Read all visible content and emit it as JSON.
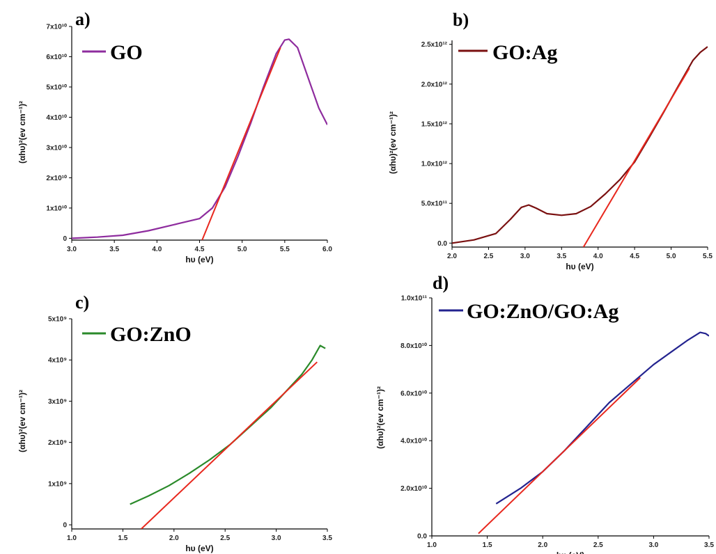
{
  "chart_data": [
    {
      "type": "line",
      "panel": "a)",
      "legend": "GO",
      "xlabel": "hυ (eV)",
      "ylabel": "(αhυ)²(ev cm⁻¹)²",
      "xlim": [
        3.0,
        6.0
      ],
      "ylim": [
        -600000000,
        70000000000
      ],
      "xticks": [
        3.0,
        3.5,
        4.0,
        4.5,
        5.0,
        5.5,
        6.0
      ],
      "xtick_labels": [
        "3.0",
        "3.5",
        "4.0",
        "4.5",
        "5.0",
        "5.5",
        "6.0"
      ],
      "yticks": [
        0,
        10000000000,
        20000000000,
        30000000000,
        40000000000,
        50000000000,
        60000000000,
        70000000000
      ],
      "ytick_labels": [
        "0",
        "1x10¹⁰",
        "2x10¹⁰",
        "3x10¹⁰",
        "4x10¹⁰",
        "5x10¹⁰",
        "6x10¹⁰",
        "7x10¹⁰"
      ],
      "grid": false,
      "legend_position": "top-left",
      "series": [
        {
          "color": "#8e2c9e",
          "x": [
            3.0,
            3.3,
            3.6,
            3.9,
            4.2,
            4.5,
            4.65,
            4.8,
            4.95,
            5.1,
            5.25,
            5.4,
            5.5,
            5.55,
            5.65,
            5.8,
            5.9,
            6.0
          ],
          "y": [
            0,
            400000000,
            1000000000,
            2500000000,
            4500000000,
            6500000000,
            10000000000,
            17000000000,
            27000000000,
            38000000000,
            50000000000,
            61000000000,
            65500000000,
            65800000000,
            63000000000,
            51000000000,
            43000000000,
            37500000000
          ]
        },
        {
          "color": "#e8281e",
          "x": [
            4.53,
            5.45
          ],
          "y": [
            -600000000,
            63000000000
          ]
        }
      ]
    },
    {
      "type": "line",
      "panel": "b)",
      "legend": "GO:Ag",
      "xlabel": "hυ (eV)",
      "ylabel": "(αhυ)²(ev cm⁻¹)²",
      "xlim": [
        2.0,
        5.5
      ],
      "ylim": [
        -50000000000,
        2550000000000
      ],
      "xticks": [
        2.0,
        2.5,
        3.0,
        3.5,
        4.0,
        4.5,
        5.0,
        5.5
      ],
      "xtick_labels": [
        "2.0",
        "2.5",
        "3.0",
        "3.5",
        "4.0",
        "4.5",
        "5.0",
        "5.5"
      ],
      "yticks": [
        0,
        500000000000,
        1000000000000,
        1500000000000,
        2000000000000,
        2500000000000
      ],
      "ytick_labels": [
        "0.0",
        "5.0x10¹¹",
        "1.0x10¹²",
        "1.5x10¹²",
        "2.0x10¹²",
        "2.5x10¹²"
      ],
      "grid": false,
      "legend_position": "top-left",
      "series": [
        {
          "color": "#7a1010",
          "x": [
            2.0,
            2.3,
            2.6,
            2.8,
            2.95,
            3.05,
            3.15,
            3.3,
            3.5,
            3.7,
            3.9,
            4.1,
            4.3,
            4.5,
            4.7,
            4.9,
            5.1,
            5.3,
            5.4,
            5.5
          ],
          "y": [
            0,
            40000000000,
            120000000000,
            300000000000,
            450000000000,
            480000000000,
            440000000000,
            370000000000,
            350000000000,
            370000000000,
            460000000000,
            620000000000,
            800000000000,
            1020000000000,
            1330000000000,
            1650000000000,
            1980000000000,
            2300000000000,
            2400000000000,
            2470000000000
          ]
        },
        {
          "color": "#e8281e",
          "x": [
            3.8,
            5.25
          ],
          "y": [
            -50000000000,
            2200000000000
          ]
        }
      ]
    },
    {
      "type": "line",
      "panel": "c)",
      "legend": "GO:ZnO",
      "xlabel": "hυ (eV)",
      "ylabel": "(αhυ)²(ev cm⁻¹)²",
      "xlim": [
        1.0,
        3.5
      ],
      "ylim": [
        -100000000,
        5000000000
      ],
      "xticks": [
        1.0,
        1.5,
        2.0,
        2.5,
        3.0,
        3.5
      ],
      "xtick_labels": [
        "1.0",
        "1.5",
        "2.0",
        "2.5",
        "3.0",
        "3.5"
      ],
      "yticks": [
        0,
        1000000000,
        2000000000,
        3000000000,
        4000000000,
        5000000000
      ],
      "ytick_labels": [
        "0",
        "1x10⁹",
        "2x10⁹",
        "3x10⁹",
        "4x10⁹",
        "5x10⁹"
      ],
      "grid": false,
      "legend_position": "top-left",
      "series": [
        {
          "color": "#2a8a2a",
          "x": [
            1.57,
            1.75,
            1.95,
            2.15,
            2.35,
            2.55,
            2.75,
            2.95,
            3.1,
            3.25,
            3.35,
            3.43,
            3.48
          ],
          "y": [
            500000000,
            700000000,
            950000000,
            1250000000,
            1580000000,
            1950000000,
            2400000000,
            2850000000,
            3250000000,
            3650000000,
            4000000000,
            4350000000,
            4280000000
          ]
        },
        {
          "color": "#e8281e",
          "x": [
            1.68,
            3.4
          ],
          "y": [
            -100000000,
            3950000000
          ]
        }
      ]
    },
    {
      "type": "line",
      "panel": "d)",
      "legend": "GO:ZnO/GO:Ag",
      "xlabel": "hυ (eV)",
      "ylabel": "(αhυ)²(ev cm⁻¹)²",
      "xlim": [
        1.0,
        3.5
      ],
      "ylim": [
        0,
        100000000000
      ],
      "xticks": [
        1.0,
        1.5,
        2.0,
        2.5,
        3.0,
        3.5
      ],
      "xtick_labels": [
        "1.0",
        "1.5",
        "2.0",
        "2.5",
        "3.0",
        "3.5"
      ],
      "yticks": [
        0,
        20000000000,
        40000000000,
        60000000000,
        80000000000,
        100000000000
      ],
      "ytick_labels": [
        "0.0",
        "2.0x10¹⁰",
        "4.0x10¹⁰",
        "6.0x10¹⁰",
        "8.0x10¹⁰",
        "1.0x10¹¹"
      ],
      "grid": false,
      "legend_position": "top-left",
      "series": [
        {
          "color": "#23238f",
          "x": [
            1.58,
            1.8,
            2.0,
            2.2,
            2.4,
            2.6,
            2.8,
            2.9,
            3.0,
            3.15,
            3.3,
            3.42,
            3.47,
            3.5
          ],
          "y": [
            13500000000,
            20000000000,
            27000000000,
            36000000000,
            46000000000,
            56000000000,
            64000000000,
            68000000000,
            72000000000,
            77000000000,
            82000000000,
            85500000000,
            85000000000,
            84000000000
          ]
        },
        {
          "color": "#e8281e",
          "x": [
            1.42,
            2.88
          ],
          "y": [
            1000000000,
            66500000000
          ]
        }
      ]
    }
  ]
}
